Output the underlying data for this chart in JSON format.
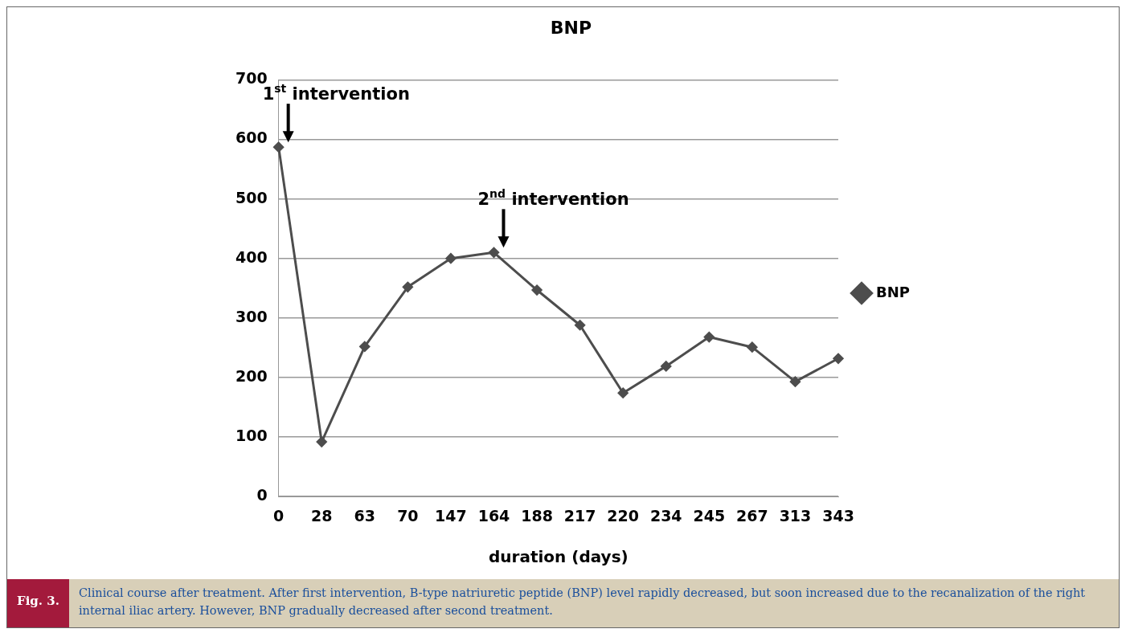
{
  "chart_data": {
    "type": "line",
    "title": "BNP",
    "xlabel": "duration (days)",
    "categories": [
      "0",
      "28",
      "63",
      "70",
      "147",
      "164",
      "188",
      "217",
      "220",
      "234",
      "245",
      "267",
      "313",
      "343"
    ],
    "series": [
      {
        "name": "BNP",
        "color": "#4d4d4d",
        "values": [
          587,
          92,
          252,
          352,
          400,
          410,
          347,
          288,
          174,
          219,
          268,
          251,
          193,
          232
        ]
      }
    ],
    "ylim": [
      0,
      700
    ],
    "yticks": [
      0,
      100,
      200,
      300,
      400,
      500,
      600,
      700
    ],
    "grid": "y",
    "legend": "right",
    "marker": "diamond",
    "line_style": "solid",
    "annotations": [
      {
        "text": "1$^{st}$ intervention",
        "x": "0",
        "y": 587
      },
      {
        "text": "2$^{nd}$ intervention",
        "x": "164",
        "y": 410
      },
      "Fig. 3.",
      "Clinical course after treatment. After first intervention, B-type natriuretic peptide (BNP) level rapidly decreased, but soon increased due to the recanalization of the right internal iliac artery. However, BNP gradually decreased after second treatment."
    ]
  }
}
